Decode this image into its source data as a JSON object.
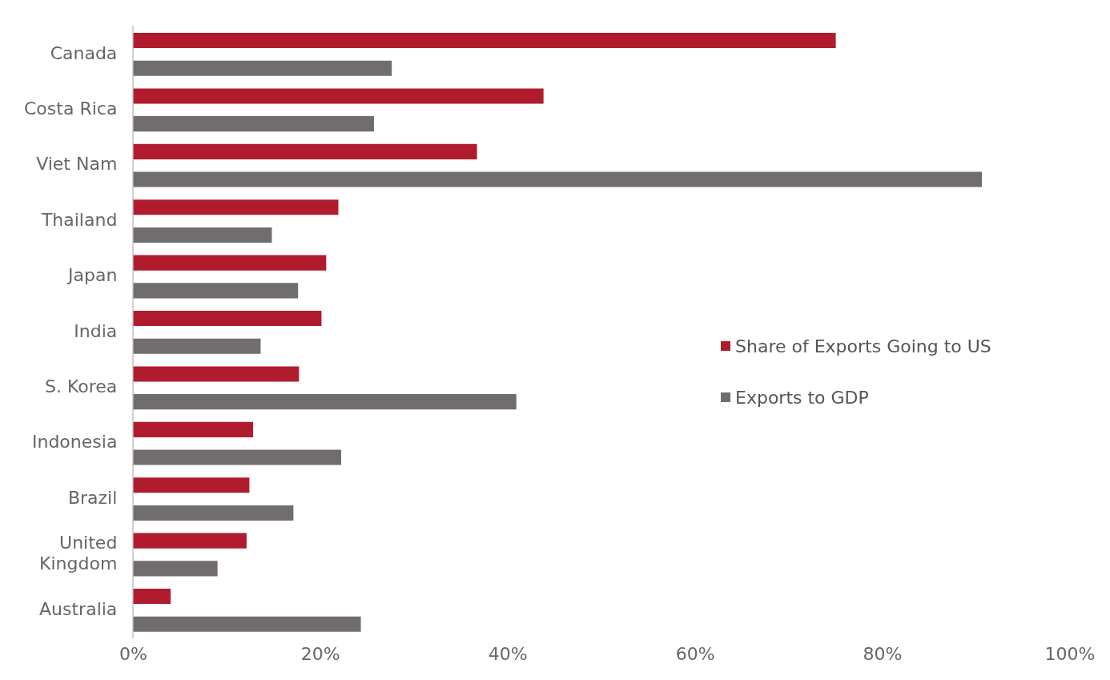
{
  "chart_data": {
    "type": "bar",
    "orientation": "horizontal",
    "categories": [
      "Canada",
      "Costa Rica",
      "Viet Nam",
      "Thailand",
      "Japan",
      "India",
      "S. Korea",
      "Indonesia",
      "Brazil",
      "United Kingdom",
      "Australia"
    ],
    "series": [
      {
        "name": "Share of Exports Going to US",
        "color": "#b01c2e",
        "values": [
          75.0,
          43.8,
          36.7,
          21.9,
          20.6,
          20.1,
          17.7,
          12.8,
          12.4,
          12.1,
          4.0
        ]
      },
      {
        "name": "Exports to GDP",
        "color": "#716d6e",
        "values": [
          27.6,
          25.7,
          90.6,
          14.8,
          17.6,
          13.6,
          40.9,
          22.2,
          17.1,
          9.0,
          24.3
        ]
      }
    ],
    "xlim": [
      0,
      100
    ],
    "xticks": [
      {
        "value": 0,
        "label": "0%"
      },
      {
        "value": 20,
        "label": "20%"
      },
      {
        "value": 40,
        "label": "40%"
      },
      {
        "value": 60,
        "label": "60%"
      },
      {
        "value": 80,
        "label": "80%"
      },
      {
        "value": 100,
        "label": "100%"
      }
    ],
    "grid": false,
    "legend": "right"
  }
}
